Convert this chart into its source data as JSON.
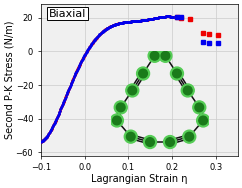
{
  "title": "Biaxial",
  "xlabel": "Lagrangian Strain η",
  "ylabel": "Second P-K Stress (N/m)",
  "xlim": [
    -0.1,
    0.35
  ],
  "ylim": [
    -62,
    28
  ],
  "xticks": [
    -0.1,
    0.0,
    0.1,
    0.2,
    0.3
  ],
  "yticks": [
    -60,
    -40,
    -20,
    0,
    20
  ],
  "bg_color": "#f0f0f0",
  "grid_color": "#cccccc",
  "blue_color": "#0000ee",
  "red_color": "#ee0000",
  "curve_eta_pts": [
    -0.1,
    -0.08,
    -0.05,
    -0.02,
    0.0,
    0.03,
    0.06,
    0.09,
    0.12,
    0.15,
    0.17,
    0.19,
    0.2,
    0.205
  ],
  "curve_stress_pts": [
    -54,
    -47,
    -32,
    -14,
    0,
    9,
    14,
    17,
    18.5,
    19.5,
    20.0,
    20.3,
    20.4,
    20.5
  ],
  "scatter_red_post": [
    [
      0.21,
      20.3
    ],
    [
      0.22,
      20.0
    ],
    [
      0.24,
      19.2
    ],
    [
      0.27,
      10.8
    ],
    [
      0.285,
      10.2
    ],
    [
      0.305,
      9.5
    ]
  ],
  "scatter_blue_post": [
    [
      0.21,
      20.3
    ],
    [
      0.22,
      20.3
    ],
    [
      0.27,
      5.3
    ],
    [
      0.285,
      5.0
    ],
    [
      0.305,
      4.8
    ]
  ],
  "node_color": "#1a7a1a",
  "glow_color": "#55cc55",
  "bond_color": "#111111",
  "title_fontsize": 8,
  "label_fontsize": 7,
  "tick_fontsize": 6
}
